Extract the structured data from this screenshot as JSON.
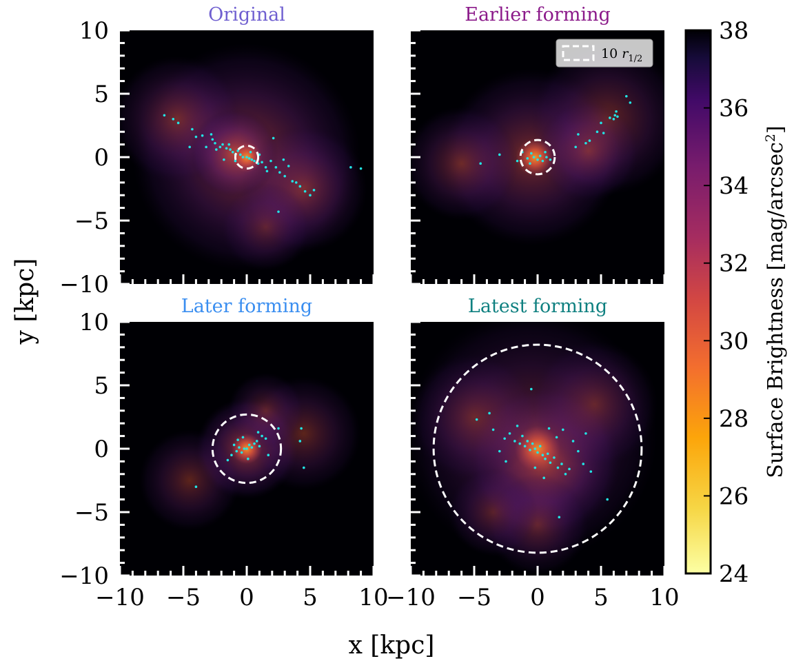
{
  "chart_data": {
    "type": "scatter",
    "xlabel": "x [kpc]",
    "ylabel": "y [kpc]",
    "xlim": [
      -10,
      10
    ],
    "ylim": [
      -10,
      10
    ],
    "xticks": [
      "−10",
      "−5",
      "0",
      "5",
      "10"
    ],
    "yticks": [
      "−10",
      "−5",
      "0",
      "5",
      "10"
    ],
    "legend": {
      "label_main": "10 ",
      "label_var": "r",
      "label_sub": "1/2",
      "location": "top-right of second panel"
    },
    "colorbar": {
      "label": "Surface Brightness [mag/arcsec",
      "label_sup": "2",
      "label_end": "]",
      "range": [
        24,
        38
      ],
      "ticks": [
        "24",
        "26",
        "28",
        "30",
        "32",
        "34",
        "36",
        "38"
      ],
      "colormap": "inferno_r"
    },
    "panels": [
      {
        "title": "Original",
        "title_color": "#6f5fd0",
        "circle_radius": 0.9,
        "glow": [
          {
            "x": 0,
            "y": 0,
            "r": 9,
            "strength": 0.7
          },
          {
            "x": -5.5,
            "y": 3,
            "r": 5,
            "strength": 0.55
          },
          {
            "x": 4.5,
            "y": -2.5,
            "r": 5,
            "strength": 0.55
          },
          {
            "x": 1.5,
            "y": -5.5,
            "r": 3.5,
            "strength": 0.4
          },
          {
            "x": -1,
            "y": 0.3,
            "r": 3.5,
            "strength": 0.8
          },
          {
            "x": 0,
            "y": 0,
            "r": 1.2,
            "strength": 1.0
          }
        ],
        "stars": [
          [
            -6.5,
            3.3
          ],
          [
            -5.8,
            3.0
          ],
          [
            -5.4,
            2.7
          ],
          [
            -4.3,
            2.2
          ],
          [
            -4.0,
            1.6
          ],
          [
            -3.5,
            1.7
          ],
          [
            -2.8,
            1.8
          ],
          [
            -2.7,
            1.4
          ],
          [
            -2.5,
            1.1
          ],
          [
            -2.4,
            0.6
          ],
          [
            -2.1,
            0.8
          ],
          [
            -1.9,
            1.0
          ],
          [
            -1.6,
            0.7
          ],
          [
            -1.4,
            1.0
          ],
          [
            -1.3,
            0.6
          ],
          [
            -1.1,
            0.4
          ],
          [
            -0.9,
            0.2
          ],
          [
            -0.7,
            0.5
          ],
          [
            -0.5,
            0.2
          ],
          [
            -0.3,
            0.0
          ],
          [
            0.0,
            0.0
          ],
          [
            0.2,
            -0.1
          ],
          [
            0.4,
            -0.2
          ],
          [
            0.6,
            -0.3
          ],
          [
            0.9,
            -0.5
          ],
          [
            1.2,
            -0.4
          ],
          [
            1.5,
            -0.8
          ],
          [
            1.9,
            -0.3
          ],
          [
            2.1,
            1.5
          ],
          [
            2.3,
            -0.8
          ],
          [
            2.6,
            -1.2
          ],
          [
            3.0,
            -1.5
          ],
          [
            3.3,
            -0.7
          ],
          [
            3.6,
            -1.9
          ],
          [
            3.9,
            -2.0
          ],
          [
            4.2,
            -2.3
          ],
          [
            4.6,
            -2.7
          ],
          [
            5.0,
            -3.0
          ],
          [
            5.3,
            -2.6
          ],
          [
            2.5,
            -4.3
          ],
          [
            8.2,
            -0.8
          ],
          [
            9.0,
            -0.9
          ],
          [
            -4.5,
            0.8
          ],
          [
            -3.2,
            0.8
          ],
          [
            -1.8,
            -0.2
          ],
          [
            -0.9,
            -0.3
          ],
          [
            0.3,
            0.4
          ],
          [
            1.0,
            0.2
          ],
          [
            1.6,
            -1.1
          ],
          [
            2.9,
            -0.2
          ]
        ]
      },
      {
        "title": "Earlier forming",
        "title_color": "#8b1a8a",
        "circle_radius": 1.35,
        "glow": [
          {
            "x": -0.5,
            "y": 0,
            "r": 7,
            "strength": 0.65
          },
          {
            "x": -6,
            "y": -0.5,
            "r": 4.5,
            "strength": 0.55
          },
          {
            "x": 5.5,
            "y": 3,
            "r": 6,
            "strength": 0.55
          },
          {
            "x": 4,
            "y": 0.5,
            "r": 4,
            "strength": 0.5
          },
          {
            "x": -0.2,
            "y": 0,
            "r": 1.5,
            "strength": 1.0
          }
        ],
        "stars": [
          [
            -4.5,
            -0.5
          ],
          [
            -3.0,
            0.2
          ],
          [
            -1.6,
            -0.3
          ],
          [
            -1.2,
            0.4
          ],
          [
            -0.8,
            -0.1
          ],
          [
            -0.5,
            0.3
          ],
          [
            -0.3,
            0.0
          ],
          [
            0.0,
            -0.2
          ],
          [
            0.2,
            0.1
          ],
          [
            0.4,
            -0.3
          ],
          [
            0.7,
            0.0
          ],
          [
            1.0,
            -0.2
          ],
          [
            3.0,
            0.8
          ],
          [
            3.8,
            1.1
          ],
          [
            4.1,
            1.3
          ],
          [
            3.2,
            1.8
          ],
          [
            4.7,
            2.0
          ],
          [
            5.2,
            1.9
          ],
          [
            5.0,
            2.7
          ],
          [
            6.1,
            3.3
          ],
          [
            6.2,
            3.6
          ],
          [
            6.3,
            3.2
          ],
          [
            7.0,
            4.8
          ],
          [
            7.3,
            4.3
          ],
          [
            6.0,
            3.0
          ],
          [
            5.7,
            3.1
          ],
          [
            -0.6,
            -0.5
          ],
          [
            0.6,
            0.4
          ]
        ]
      },
      {
        "title": "Later forming",
        "title_color": "#3a8ef0",
        "circle_radius": 2.7,
        "glow": [
          {
            "x": 0,
            "y": 0,
            "r": 4,
            "strength": 0.8
          },
          {
            "x": -4.5,
            "y": -2.5,
            "r": 4,
            "strength": 0.5
          },
          {
            "x": 4.5,
            "y": 1.2,
            "r": 4.5,
            "strength": 0.5
          },
          {
            "x": 1.5,
            "y": 3,
            "r": 3,
            "strength": 0.45
          },
          {
            "x": 0,
            "y": 0,
            "r": 1.2,
            "strength": 1.0
          }
        ],
        "stars": [
          [
            -4,
            -3
          ],
          [
            -1.2,
            -0.5
          ],
          [
            -1.0,
            0.3
          ],
          [
            -0.8,
            -0.2
          ],
          [
            -0.6,
            0.1
          ],
          [
            -0.4,
            -0.3
          ],
          [
            -0.2,
            0.0
          ],
          [
            0,
            0
          ],
          [
            0.2,
            0.3
          ],
          [
            0.4,
            0.1
          ],
          [
            0.6,
            0.4
          ],
          [
            0.8,
            0.6
          ],
          [
            1.0,
            0.2
          ],
          [
            1.2,
            1.0
          ],
          [
            1.5,
            0.8
          ],
          [
            1.7,
            -0.5
          ],
          [
            -0.3,
            0.9
          ],
          [
            0.1,
            -0.8
          ],
          [
            2.5,
            1.6
          ],
          [
            4.3,
            1.6
          ],
          [
            4.5,
            -1.5
          ],
          [
            4.2,
            0.6
          ],
          [
            -1.5,
            -0.9
          ],
          [
            0.9,
            1.3
          ],
          [
            -0.7,
            0.7
          ]
        ]
      },
      {
        "title": "Latest forming",
        "title_color": "#0f8080",
        "circle_radius": 8.2,
        "glow": [
          {
            "x": -0.5,
            "y": 1,
            "r": 10,
            "strength": 0.55
          },
          {
            "x": 0.5,
            "y": -1,
            "r": 6,
            "strength": 0.75
          },
          {
            "x": -5,
            "y": 2.5,
            "r": 5,
            "strength": 0.45
          },
          {
            "x": 4.5,
            "y": 3.5,
            "r": 5,
            "strength": 0.45
          },
          {
            "x": 0,
            "y": -6,
            "r": 4,
            "strength": 0.45
          },
          {
            "x": -3.5,
            "y": -5,
            "r": 3.5,
            "strength": 0.4
          },
          {
            "x": 0,
            "y": 0,
            "r": 1.8,
            "strength": 0.95
          }
        ],
        "stars": [
          [
            -4.8,
            2.3
          ],
          [
            -3.8,
            2.8
          ],
          [
            -3.5,
            1.5
          ],
          [
            -2.6,
            0.8
          ],
          [
            -2.2,
            1.2
          ],
          [
            -1.8,
            0.6
          ],
          [
            -1.6,
            1.8
          ],
          [
            -1.4,
            0.4
          ],
          [
            -1.2,
            1.0
          ],
          [
            -1.0,
            0.2
          ],
          [
            -0.8,
            0.6
          ],
          [
            -0.6,
            -0.1
          ],
          [
            -0.4,
            0.4
          ],
          [
            -0.2,
            0.0
          ],
          [
            0.0,
            -0.3
          ],
          [
            0.2,
            0.2
          ],
          [
            0.4,
            -0.5
          ],
          [
            0.6,
            -0.8
          ],
          [
            0.8,
            -0.4
          ],
          [
            1.0,
            -1.1
          ],
          [
            1.3,
            -0.7
          ],
          [
            1.6,
            -1.5
          ],
          [
            1.9,
            -1.2
          ],
          [
            2.2,
            -2.0
          ],
          [
            2.5,
            -1.6
          ],
          [
            2.8,
            0.6
          ],
          [
            3.2,
            -0.2
          ],
          [
            3.6,
            -1.2
          ],
          [
            3.8,
            1.2
          ],
          [
            4.2,
            -1.8
          ],
          [
            5.5,
            -4.0
          ],
          [
            2.0,
            1.5
          ],
          [
            -0.5,
            4.7
          ],
          [
            -3.0,
            -0.2
          ],
          [
            1.7,
            -5.4
          ],
          [
            -2.5,
            -1.0
          ],
          [
            0.9,
            1.6
          ],
          [
            1.5,
            0.9
          ],
          [
            -0.2,
            -1.5
          ],
          [
            0.5,
            -2.3
          ]
        ]
      }
    ]
  }
}
